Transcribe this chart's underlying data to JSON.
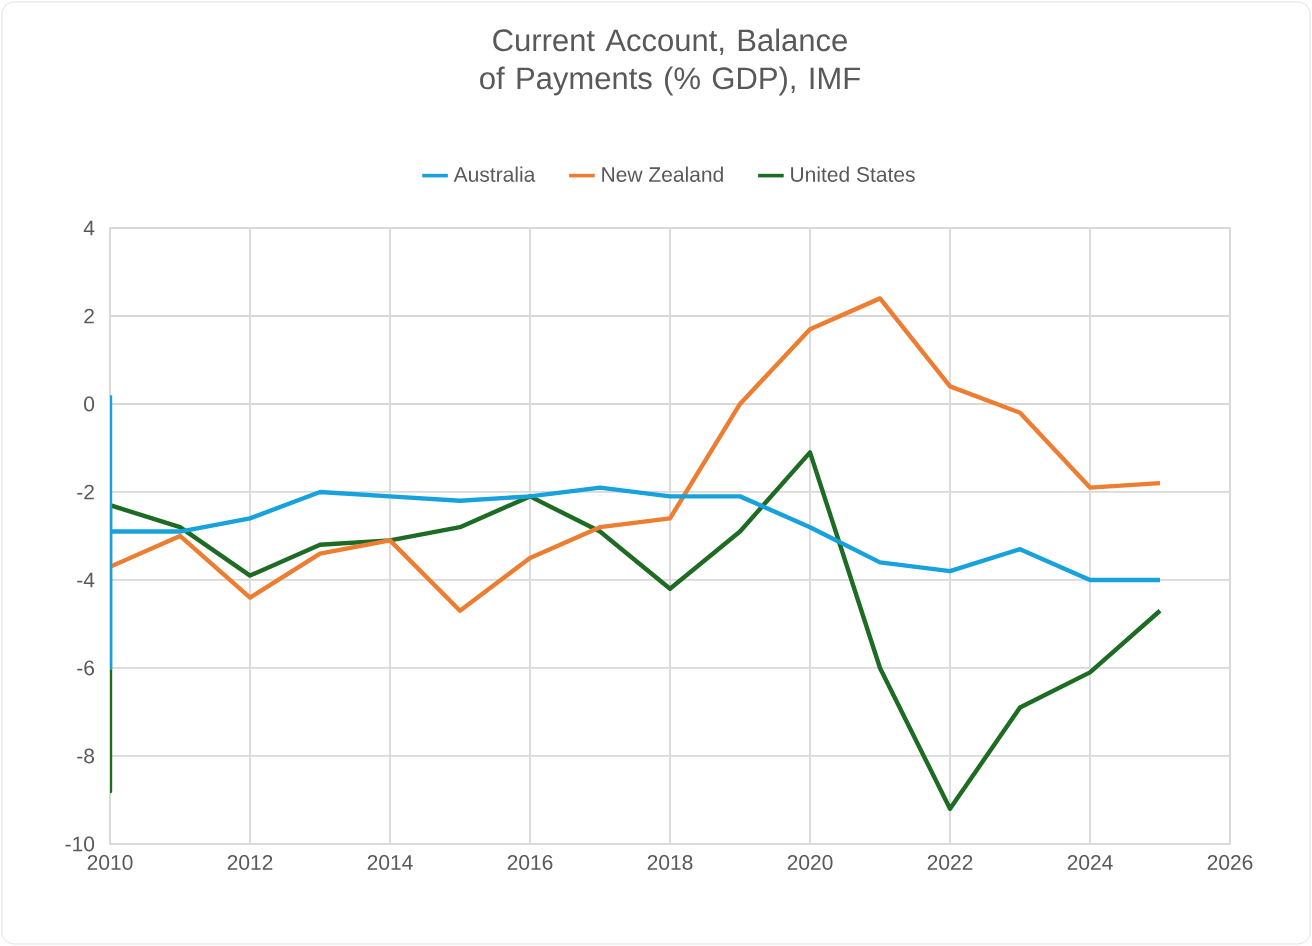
{
  "chart_data": {
    "type": "line",
    "title": "Current Account, Balance of Payments (% GDP), IMF",
    "series": [
      {
        "name": "Australia",
        "color": "#17a2dc",
        "x": [
          2010,
          2010,
          2010,
          2011,
          2012,
          2013,
          2014,
          2015,
          2016,
          2017,
          2018,
          2019,
          2020,
          2021,
          2022,
          2023,
          2024,
          2025
        ],
        "values": [
          0.2,
          -6.0,
          -2.9,
          -2.9,
          -2.6,
          -2.0,
          -2.1,
          -2.2,
          -2.1,
          -1.9,
          -2.1,
          -2.1,
          -2.8,
          -3.6,
          -3.8,
          -3.3,
          -4.0,
          -4.0
        ]
      },
      {
        "name": "New Zealand",
        "color": "#ed7d31",
        "x": [
          2010,
          2011,
          2012,
          2013,
          2014,
          2015,
          2016,
          2017,
          2018,
          2019,
          2020,
          2021,
          2022,
          2023,
          2024,
          2025
        ],
        "values": [
          -3.7,
          -3.0,
          -4.4,
          -3.4,
          -3.1,
          -4.7,
          -3.5,
          -2.8,
          -2.6,
          0.0,
          1.7,
          2.4,
          0.4,
          -0.2,
          -1.9,
          -1.8
        ]
      },
      {
        "name": "United States",
        "color": "#1e6b24",
        "x": [
          2010,
          2010,
          2010,
          2011,
          2012,
          2013,
          2014,
          2015,
          2016,
          2017,
          2018,
          2019,
          2020,
          2021,
          2022,
          2023,
          2024,
          2025
        ],
        "values": [
          -6.0,
          -8.8,
          -2.3,
          -2.8,
          -3.9,
          -3.2,
          -3.1,
          -2.8,
          -2.1,
          -2.9,
          -4.2,
          -2.9,
          -1.1,
          -6.0,
          -9.2,
          -6.9,
          -6.1,
          -4.7
        ]
      }
    ],
    "xlim": [
      2010,
      2026
    ],
    "xticks": [
      2010,
      2012,
      2014,
      2016,
      2018,
      2020,
      2022,
      2024,
      2026
    ],
    "ylim": [
      -10,
      4
    ],
    "yticks": [
      -10,
      -8,
      -6,
      -4,
      -2,
      0,
      2,
      4
    ],
    "grid": true,
    "legend": "top",
    "marker": "none",
    "line_style": "solid"
  }
}
